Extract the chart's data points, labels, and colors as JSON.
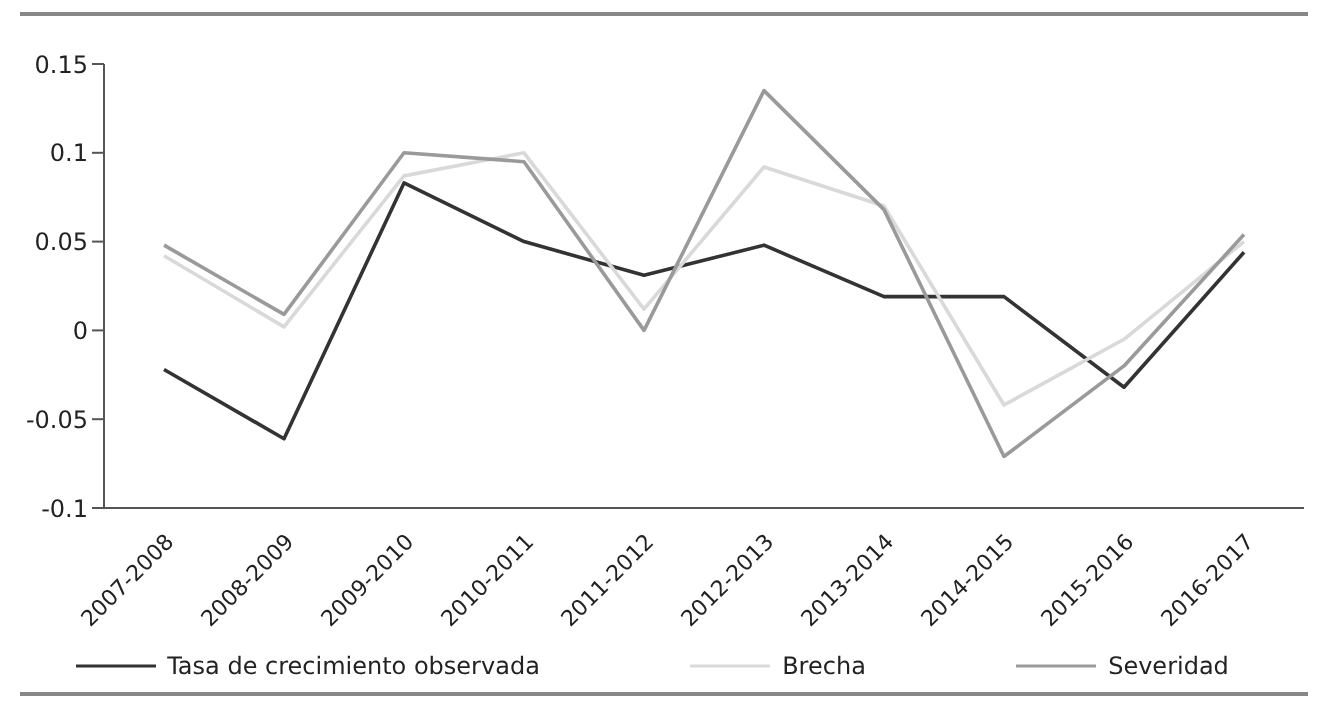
{
  "chart_data": {
    "type": "line",
    "categories": [
      "2007-2008",
      "2008-2009",
      "2009-2010",
      "2010-2011",
      "2011-2012",
      "2012-2013",
      "2013-2014",
      "2014-2015",
      "2015-2016",
      "2016-2017"
    ],
    "series": [
      {
        "name": "Tasa de crecimiento observada",
        "color": "#333333",
        "values": [
          -0.022,
          -0.061,
          0.083,
          0.05,
          0.031,
          0.048,
          0.019,
          0.019,
          -0.032,
          0.044
        ]
      },
      {
        "name": "Brecha",
        "color": "#d9d9d9",
        "values": [
          0.042,
          0.002,
          0.087,
          0.1,
          0.012,
          0.092,
          0.07,
          -0.042,
          -0.005,
          0.05
        ]
      },
      {
        "name": "Severidad",
        "color": "#9a9a9a",
        "values": [
          0.048,
          0.009,
          0.1,
          0.095,
          0,
          0.135,
          0.068,
          -0.071,
          -0.02,
          0.054
        ]
      }
    ],
    "ylim": [
      -0.1,
      0.15
    ],
    "yticks": [
      -0.1,
      -0.05,
      0,
      0.05,
      0.1,
      0.15
    ],
    "grid": false,
    "legend": "bottom",
    "marker": "none",
    "line_style": "solid"
  }
}
